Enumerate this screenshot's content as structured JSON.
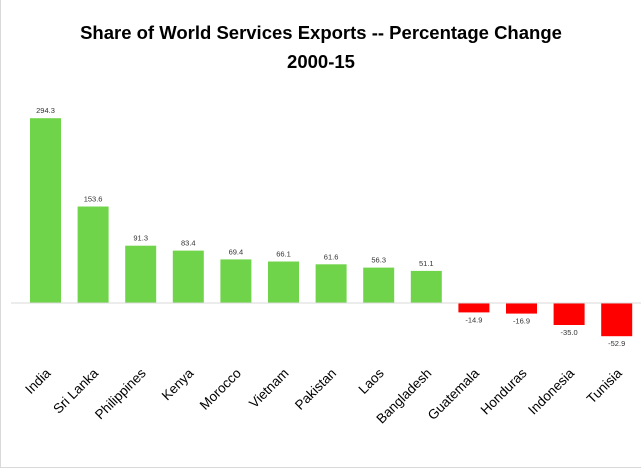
{
  "chart_data": {
    "type": "bar",
    "title_line1": "Share of World Services Exports -- Percentage Change",
    "title_line2": "2000-15",
    "xlabel": "",
    "ylabel": "",
    "categories": [
      "India",
      "Sri Lanka",
      "Philippines",
      "Kenya",
      "Morocco",
      "Vietnam",
      "Pakistan",
      "Laos",
      "Bangladesh",
      "Guatemala",
      "Honduras",
      "Indonesia",
      "Tunisia"
    ],
    "values": [
      294.3,
      153.6,
      91.3,
      83.4,
      69.4,
      66.1,
      61.6,
      56.3,
      51.1,
      -14.9,
      -16.9,
      -35.0,
      -52.9
    ],
    "data_labels": [
      "294.3",
      "153.6",
      "91.3",
      "83.4",
      "69.4",
      "66.1",
      "61.6",
      "56.3",
      "51.1",
      "-14.9",
      "-16.9",
      "-35.0",
      "-52.9"
    ],
    "ylim": [
      -60,
      300
    ],
    "grid": false,
    "legend": "none",
    "colors": {
      "positive": "#70d44b",
      "negative": "#ff0000",
      "axis": "#d9d9d9"
    }
  }
}
